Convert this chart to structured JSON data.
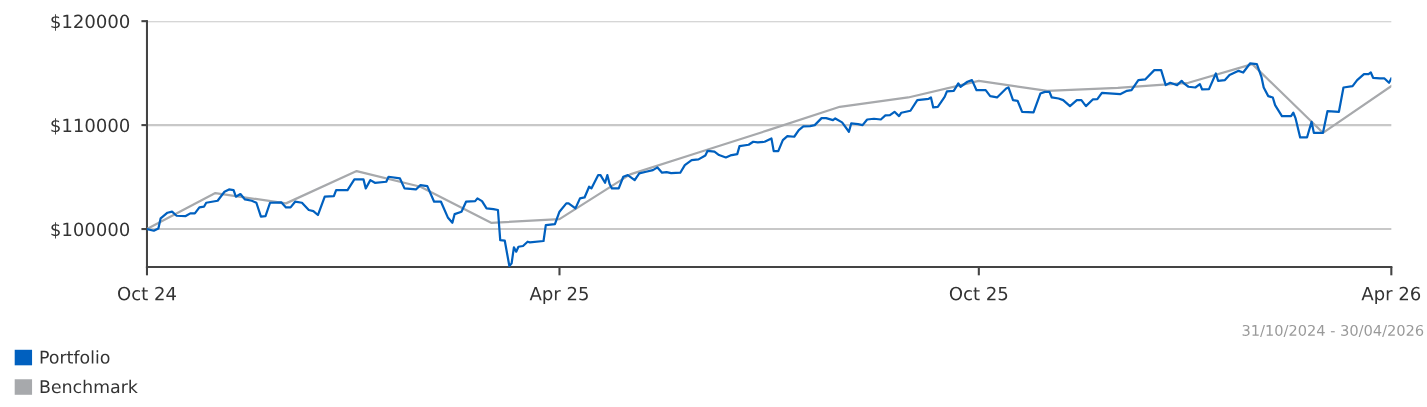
{
  "chart_data": {
    "type": "line",
    "xlim": [
      "2024-10-31",
      "2026-04-30"
    ],
    "xticks": [
      {
        "value": "2024-10-31",
        "label": "Oct 24"
      },
      {
        "value": "2025-04-30",
        "label": "Apr 25"
      },
      {
        "value": "2025-10-31",
        "label": "Oct 25"
      },
      {
        "value": "2026-04-30",
        "label": "Apr 26"
      }
    ],
    "ylim": [
      96350,
      120000
    ],
    "yticks": [
      {
        "value": 100000,
        "label": "$100000"
      },
      {
        "value": 110000,
        "label": "$110000"
      },
      {
        "value": 120000,
        "label": "$120000"
      }
    ],
    "grid": "y",
    "legend": "bottom left",
    "marker": "none",
    "line_style": "solid",
    "annotations": [
      "31/10/2024 - 30/04/2026"
    ],
    "series": [
      {
        "name": "Portfolio",
        "color": "#0060bf",
        "x": [
          "2024-10-31",
          "2024-11-03",
          "2024-11-05",
          "2024-11-06",
          "2024-11-09",
          "2024-11-11",
          "2024-11-13",
          "2024-11-17",
          "2024-11-19",
          "2024-11-21",
          "2024-11-23",
          "2024-11-25",
          "2024-11-26",
          "2024-12-01",
          "2024-12-04",
          "2024-12-06",
          "2024-12-08",
          "2024-12-09",
          "2024-12-11",
          "2024-12-13",
          "2024-12-16",
          "2024-12-18",
          "2024-12-20",
          "2024-12-22",
          "2024-12-24",
          "2024-12-29",
          "2024-12-31",
          "2025-01-02",
          "2025-01-04",
          "2025-01-07",
          "2025-01-10",
          "2025-01-12",
          "2025-01-14",
          "2025-01-17",
          "2025-01-21",
          "2025-01-22",
          "2025-01-27",
          "2025-01-30",
          "2025-02-03",
          "2025-02-04",
          "2025-02-06",
          "2025-02-08",
          "2025-02-13",
          "2025-02-14",
          "2025-02-19",
          "2025-02-21",
          "2025-02-26",
          "2025-02-28",
          "2025-03-03",
          "2025-03-06",
          "2025-03-09",
          "2025-03-12",
          "2025-03-14",
          "2025-03-15",
          "2025-03-18",
          "2025-03-20",
          "2025-03-24",
          "2025-03-25",
          "2025-03-27",
          "2025-03-29",
          "2025-04-01",
          "2025-04-03",
          "2025-04-04",
          "2025-04-06",
          "2025-04-08",
          "2025-04-09",
          "2025-04-10",
          "2025-04-11",
          "2025-04-12",
          "2025-04-14",
          "2025-04-16",
          "2025-04-17",
          "2025-04-23",
          "2025-04-24",
          "2025-04-28",
          "2025-04-30",
          "2025-05-03",
          "2025-05-04",
          "2025-05-07",
          "2025-05-09",
          "2025-05-11",
          "2025-05-13",
          "2025-05-14",
          "2025-05-17",
          "2025-05-18",
          "2025-05-20",
          "2025-05-21",
          "2025-05-22",
          "2025-05-23",
          "2025-05-26",
          "2025-05-28",
          "2025-05-30",
          "2025-06-02",
          "2025-06-04",
          "2025-06-07",
          "2025-06-10",
          "2025-06-12",
          "2025-06-14",
          "2025-06-16",
          "2025-06-18",
          "2025-06-22",
          "2025-06-24",
          "2025-06-27",
          "2025-06-30",
          "2025-07-03",
          "2025-07-04",
          "2025-07-07",
          "2025-07-09",
          "2025-07-12",
          "2025-07-14",
          "2025-07-17",
          "2025-07-18",
          "2025-07-22",
          "2025-07-24",
          "2025-07-26",
          "2025-07-29",
          "2025-08-01",
          "2025-08-02",
          "2025-08-04",
          "2025-08-06",
          "2025-08-08",
          "2025-08-11",
          "2025-08-13",
          "2025-08-15",
          "2025-08-18",
          "2025-08-20",
          "2025-08-23",
          "2025-08-25",
          "2025-08-28",
          "2025-08-29",
          "2025-09-01",
          "2025-09-04",
          "2025-09-05",
          "2025-09-08",
          "2025-09-10",
          "2025-09-12",
          "2025-09-15",
          "2025-09-18",
          "2025-09-20",
          "2025-09-22",
          "2025-09-24",
          "2025-09-26",
          "2025-09-27",
          "2025-10-01",
          "2025-10-04",
          "2025-10-09",
          "2025-10-10",
          "2025-10-11",
          "2025-10-13",
          "2025-10-16",
          "2025-10-17",
          "2025-10-20",
          "2025-10-22",
          "2025-10-23",
          "2025-10-26",
          "2025-10-28",
          "2025-10-30",
          "2025-11-03",
          "2025-11-05",
          "2025-11-08",
          "2025-11-12",
          "2025-11-13",
          "2025-11-15",
          "2025-11-17",
          "2025-11-19",
          "2025-11-24",
          "2025-11-27",
          "2025-11-29",
          "2025-12-01",
          "2025-12-02",
          "2025-12-05",
          "2025-12-07",
          "2025-12-10",
          "2025-12-13",
          "2025-12-15",
          "2025-12-17",
          "2025-12-20",
          "2025-12-22",
          "2025-12-24",
          "2026-01-01",
          "2026-01-04",
          "2026-01-06",
          "2026-01-09",
          "2026-01-12",
          "2026-01-16",
          "2026-01-19",
          "2026-01-21",
          "2026-01-23",
          "2026-01-26",
          "2026-01-28",
          "2026-01-29",
          "2026-01-31",
          "2026-02-03",
          "2026-02-05",
          "2026-02-06",
          "2026-02-09",
          "2026-02-12",
          "2026-02-13",
          "2026-02-16",
          "2026-02-18",
          "2026-02-22",
          "2026-02-24",
          "2026-02-27",
          "2026-03-02",
          "2026-03-04",
          "2026-03-05",
          "2026-03-07",
          "2026-03-09",
          "2026-03-10",
          "2026-03-13",
          "2026-03-17",
          "2026-03-18",
          "2026-03-19",
          "2026-03-21",
          "2026-03-24",
          "2026-03-26",
          "2026-03-27",
          "2026-03-31",
          "2026-04-02",
          "2026-04-07",
          "2026-04-09",
          "2026-04-13",
          "2026-04-15",
          "2026-04-18",
          "2026-04-20",
          "2026-04-21",
          "2026-04-22",
          "2026-04-25",
          "2026-04-27",
          "2026-04-29",
          "2026-04-30"
        ],
        "values": [
          100000,
          99840,
          100060,
          101030,
          101570,
          101670,
          101280,
          101250,
          101510,
          101510,
          102080,
          102150,
          102530,
          102720,
          103590,
          103810,
          103750,
          103110,
          103370,
          102850,
          102720,
          102530,
          101190,
          101250,
          102530,
          102560,
          102080,
          102080,
          102630,
          102530,
          101830,
          101730,
          101350,
          103110,
          103170,
          103750,
          103750,
          104780,
          104780,
          103910,
          104710,
          104450,
          104550,
          105030,
          104870,
          103910,
          103810,
          104230,
          104130,
          102630,
          102630,
          101120,
          100610,
          101440,
          101670,
          102630,
          102690,
          102950,
          102690,
          101990,
          101920,
          101830,
          98940,
          98880,
          96440,
          96700,
          98240,
          97820,
          98300,
          98370,
          98780,
          98720,
          98850,
          100380,
          100480,
          101670,
          102470,
          102470,
          101990,
          102950,
          103040,
          104070,
          103910,
          105190,
          105190,
          104450,
          105190,
          104330,
          103910,
          103910,
          105030,
          105190,
          104710,
          105350,
          105510,
          105670,
          105930,
          105420,
          105480,
          105380,
          105420,
          106150,
          106630,
          106700,
          107080,
          107530,
          107440,
          107120,
          106890,
          107080,
          107210,
          107980,
          108110,
          108400,
          108330,
          108400,
          108720,
          107500,
          107500,
          108560,
          108940,
          108880,
          109520,
          109870,
          109900,
          110000,
          110670,
          110670,
          110480,
          110640,
          110260,
          109360,
          110160,
          110100,
          110000,
          110540,
          110610,
          110540,
          110930,
          110960,
          111280,
          110870,
          111190,
          111380,
          112400,
          112530,
          112660,
          111700,
          111760,
          112720,
          113240,
          113300,
          114010,
          113690,
          114170,
          114330,
          113360,
          113360,
          112790,
          112660,
          113520,
          113620,
          112400,
          112340,
          111280,
          111220,
          113040,
          113200,
          113200,
          112660,
          112560,
          112400,
          111830,
          112400,
          112400,
          111830,
          112470,
          112500,
          113110,
          112980,
          113300,
          113360,
          114330,
          114390,
          115290,
          115290,
          113850,
          114070,
          113850,
          114260,
          114010,
          113690,
          113620,
          113940,
          113430,
          113460,
          114970,
          114260,
          114330,
          114810,
          115220,
          115060,
          115930,
          115860,
          114650,
          113620,
          112790,
          112660,
          111920,
          110860,
          110860,
          111190,
          110640,
          108810,
          108810,
          110320,
          109260,
          109260,
          111350,
          111280,
          113620,
          113750,
          114330,
          114900,
          114900,
          115060,
          114550,
          114490,
          114490,
          114070,
          114490
        ]
      },
      {
        "name": "Benchmark",
        "color": "#a7a9ac",
        "x": [
          "2024-10-31",
          "2024-11-30",
          "2024-12-31",
          "2025-01-31",
          "2025-02-28",
          "2025-03-31",
          "2025-04-30",
          "2025-05-31",
          "2025-06-30",
          "2025-07-31",
          "2025-08-31",
          "2025-09-30",
          "2025-10-31",
          "2025-11-30",
          "2025-12-31",
          "2026-01-31",
          "2026-02-28",
          "2026-03-31",
          "2026-04-30"
        ],
        "values": [
          100000,
          103460,
          102470,
          105580,
          104070,
          100600,
          100960,
          105260,
          107360,
          109540,
          111760,
          112660,
          114260,
          113300,
          113590,
          114070,
          115870,
          109260,
          113750
        ]
      }
    ]
  }
}
